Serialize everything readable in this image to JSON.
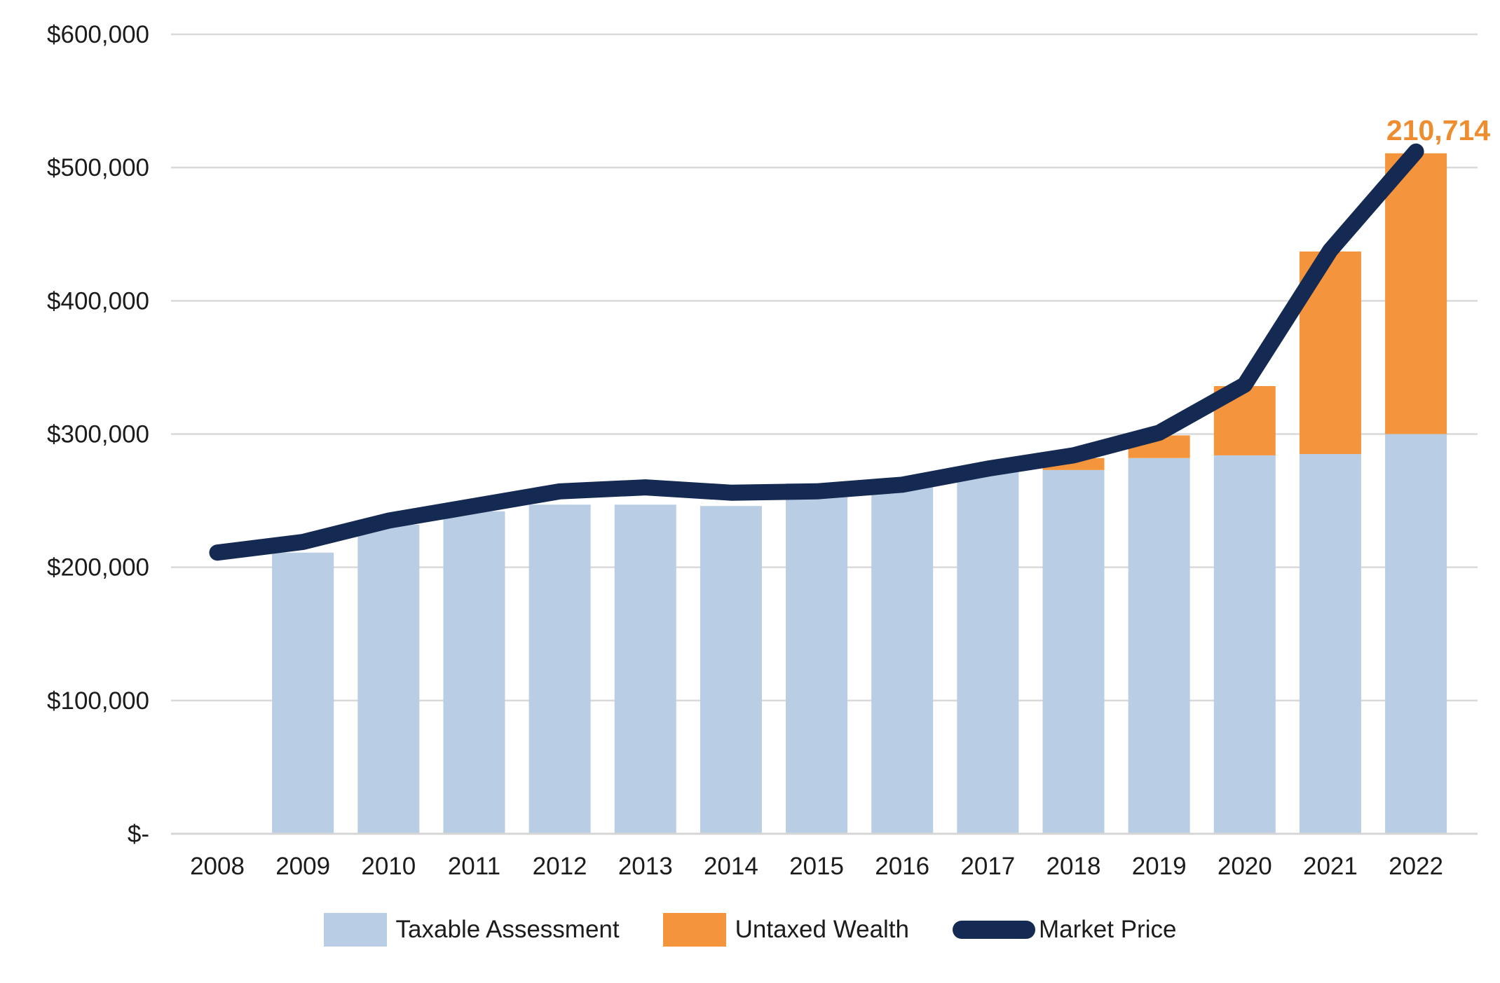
{
  "chart_data": {
    "type": "combo-stacked-bar-line",
    "title": "",
    "categories": [
      "2008",
      "2009",
      "2010",
      "2011",
      "2012",
      "2013",
      "2014",
      "2015",
      "2016",
      "2017",
      "2018",
      "2019",
      "2020",
      "2021",
      "2022"
    ],
    "series": [
      {
        "name": "Taxable Assessment",
        "type": "bar",
        "color": "#b9cde4",
        "values": [
          null,
          211000,
          232000,
          242000,
          247000,
          247000,
          246000,
          263000,
          265000,
          273000,
          273000,
          282000,
          284000,
          285000,
          300000
        ]
      },
      {
        "name": "Untaxed Wealth",
        "type": "bar",
        "color": "#f4953e",
        "values": [
          null,
          0,
          0,
          0,
          0,
          0,
          0,
          0,
          0,
          0,
          9000,
          17000,
          52000,
          152000,
          210714
        ]
      },
      {
        "name": "Market Price",
        "type": "line",
        "color": "#142a52",
        "values": [
          211000,
          219000,
          235000,
          246000,
          257000,
          260000,
          256000,
          257000,
          262000,
          274000,
          284000,
          301000,
          337000,
          438000,
          512000
        ]
      }
    ],
    "y_axis": {
      "min": 0,
      "max": 600000,
      "step": 100000,
      "tick_labels": [
        "$-",
        "$100,000",
        "$200,000",
        "$300,000",
        "$400,000",
        "$500,000",
        "$600,000"
      ]
    },
    "x_axis": {
      "tick_labels": [
        "2008",
        "2009",
        "2010",
        "2011",
        "2012",
        "2013",
        "2014",
        "2015",
        "2016",
        "2017",
        "2018",
        "2019",
        "2020",
        "2021",
        "2022"
      ]
    },
    "annotation": {
      "text": "210,714",
      "series": "Untaxed Wealth",
      "category": "2022",
      "color": "#ee8d30"
    },
    "legend": {
      "position": "bottom",
      "items": [
        {
          "label": "Taxable Assessment",
          "marker": "square",
          "color": "#b9cde4"
        },
        {
          "label": "Untaxed Wealth",
          "marker": "square",
          "color": "#f4953e"
        },
        {
          "label": "Market Price",
          "marker": "line",
          "color": "#142a52"
        }
      ]
    },
    "grid": {
      "show": true,
      "color": "#d9d9d9"
    },
    "text_color": "#1c1c1c"
  }
}
